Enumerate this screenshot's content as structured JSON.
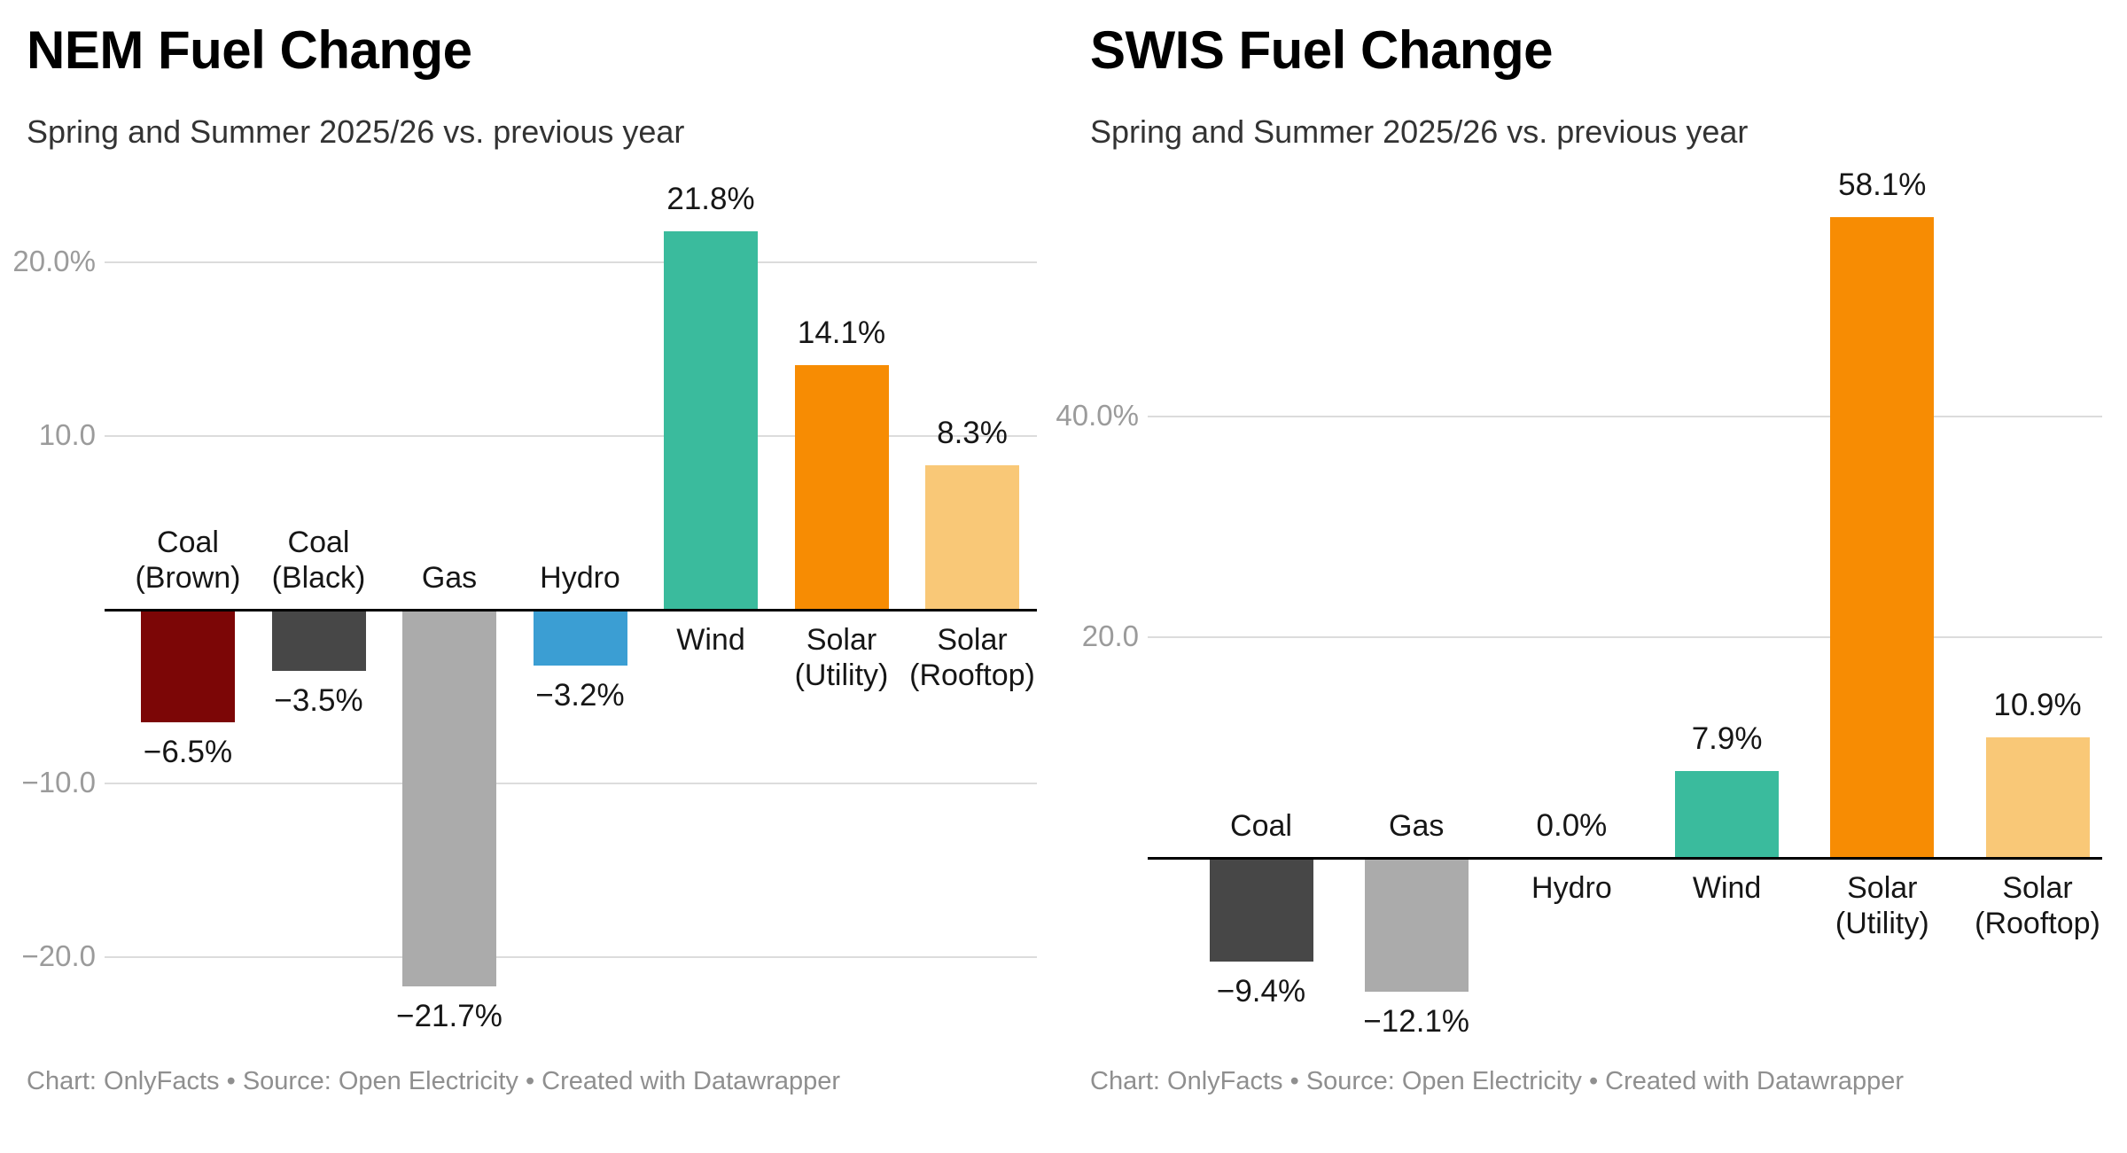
{
  "page": {
    "background": "#ffffff"
  },
  "colors": {
    "axis": "#000000",
    "grid": "#dcdcdc",
    "tick_text": "#9b9b9b",
    "label_text": "#161616",
    "title_text": "#000000",
    "subtitle_text": "#333333",
    "footer_text": "#8f8f8f"
  },
  "chart_data": [
    {
      "type": "bar",
      "title": "NEM Fuel Change",
      "subtitle": "Spring and Summer 2025/26 vs. previous year",
      "footer": "Chart: OnlyFacts • Source: Open Electricity • Created with Datawrapper",
      "legend": "none",
      "grid": true,
      "xlabel": "",
      "ylabel": "",
      "categories": [
        "Coal (Brown)",
        "Coal (Black)",
        "Gas",
        "Hydro",
        "Wind",
        "Solar (Utility)",
        "Solar (Rooftop)"
      ],
      "category_label_lines": [
        [
          "Coal",
          "(Brown)"
        ],
        [
          "Coal",
          "(Black)"
        ],
        [
          "Gas"
        ],
        [
          "Hydro"
        ],
        [
          "Wind"
        ],
        [
          "Solar",
          "(Utility)"
        ],
        [
          "Solar",
          "(Rooftop)"
        ]
      ],
      "values": [
        -6.5,
        -3.5,
        -21.7,
        -3.2,
        21.8,
        14.1,
        8.3
      ],
      "value_labels": [
        "−6.5%",
        "−3.5%",
        "−21.7%",
        "−3.2%",
        "21.8%",
        "14.1%",
        "8.3%"
      ],
      "bar_colors": [
        "#7c0606",
        "#474747",
        "#ababab",
        "#3b9ed3",
        "#3abb9d",
        "#f78c03",
        "#f9c877"
      ],
      "ylim": [
        -24.5,
        27
      ],
      "y_ticks": [
        {
          "value": 20,
          "label": "20.0%"
        },
        {
          "value": 10,
          "label": "10.0"
        },
        {
          "value": -10,
          "label": "−10.0"
        },
        {
          "value": -20,
          "label": "−20.0"
        }
      ]
    },
    {
      "type": "bar",
      "title": "SWIS Fuel Change",
      "subtitle": "Spring and Summer 2025/26 vs. previous year",
      "footer": "Chart: OnlyFacts • Source: Open Electricity • Created with Datawrapper",
      "legend": "none",
      "grid": true,
      "xlabel": "",
      "ylabel": "",
      "categories": [
        "Coal",
        "Gas",
        "Hydro",
        "Wind",
        "Solar (Utility)",
        "Solar (Rooftop)"
      ],
      "category_label_lines": [
        [
          "Coal"
        ],
        [
          "Gas"
        ],
        [
          "Hydro"
        ],
        [
          "Wind"
        ],
        [
          "Solar",
          "(Utility)"
        ],
        [
          "Solar",
          "(Rooftop)"
        ]
      ],
      "values": [
        -9.4,
        -12.1,
        0.0,
        7.9,
        58.1,
        10.9
      ],
      "value_labels": [
        "−9.4%",
        "−12.1%",
        "0.0%",
        "7.9%",
        "58.1%",
        "10.9%"
      ],
      "bar_colors": [
        "#474747",
        "#ababab",
        null,
        "#3abb9d",
        "#f78c03",
        "#f9c877"
      ],
      "ylim": [
        -16,
        62
      ],
      "y_ticks": [
        {
          "value": 40,
          "label": "40.0%"
        },
        {
          "value": 20,
          "label": "20.0"
        }
      ]
    }
  ]
}
